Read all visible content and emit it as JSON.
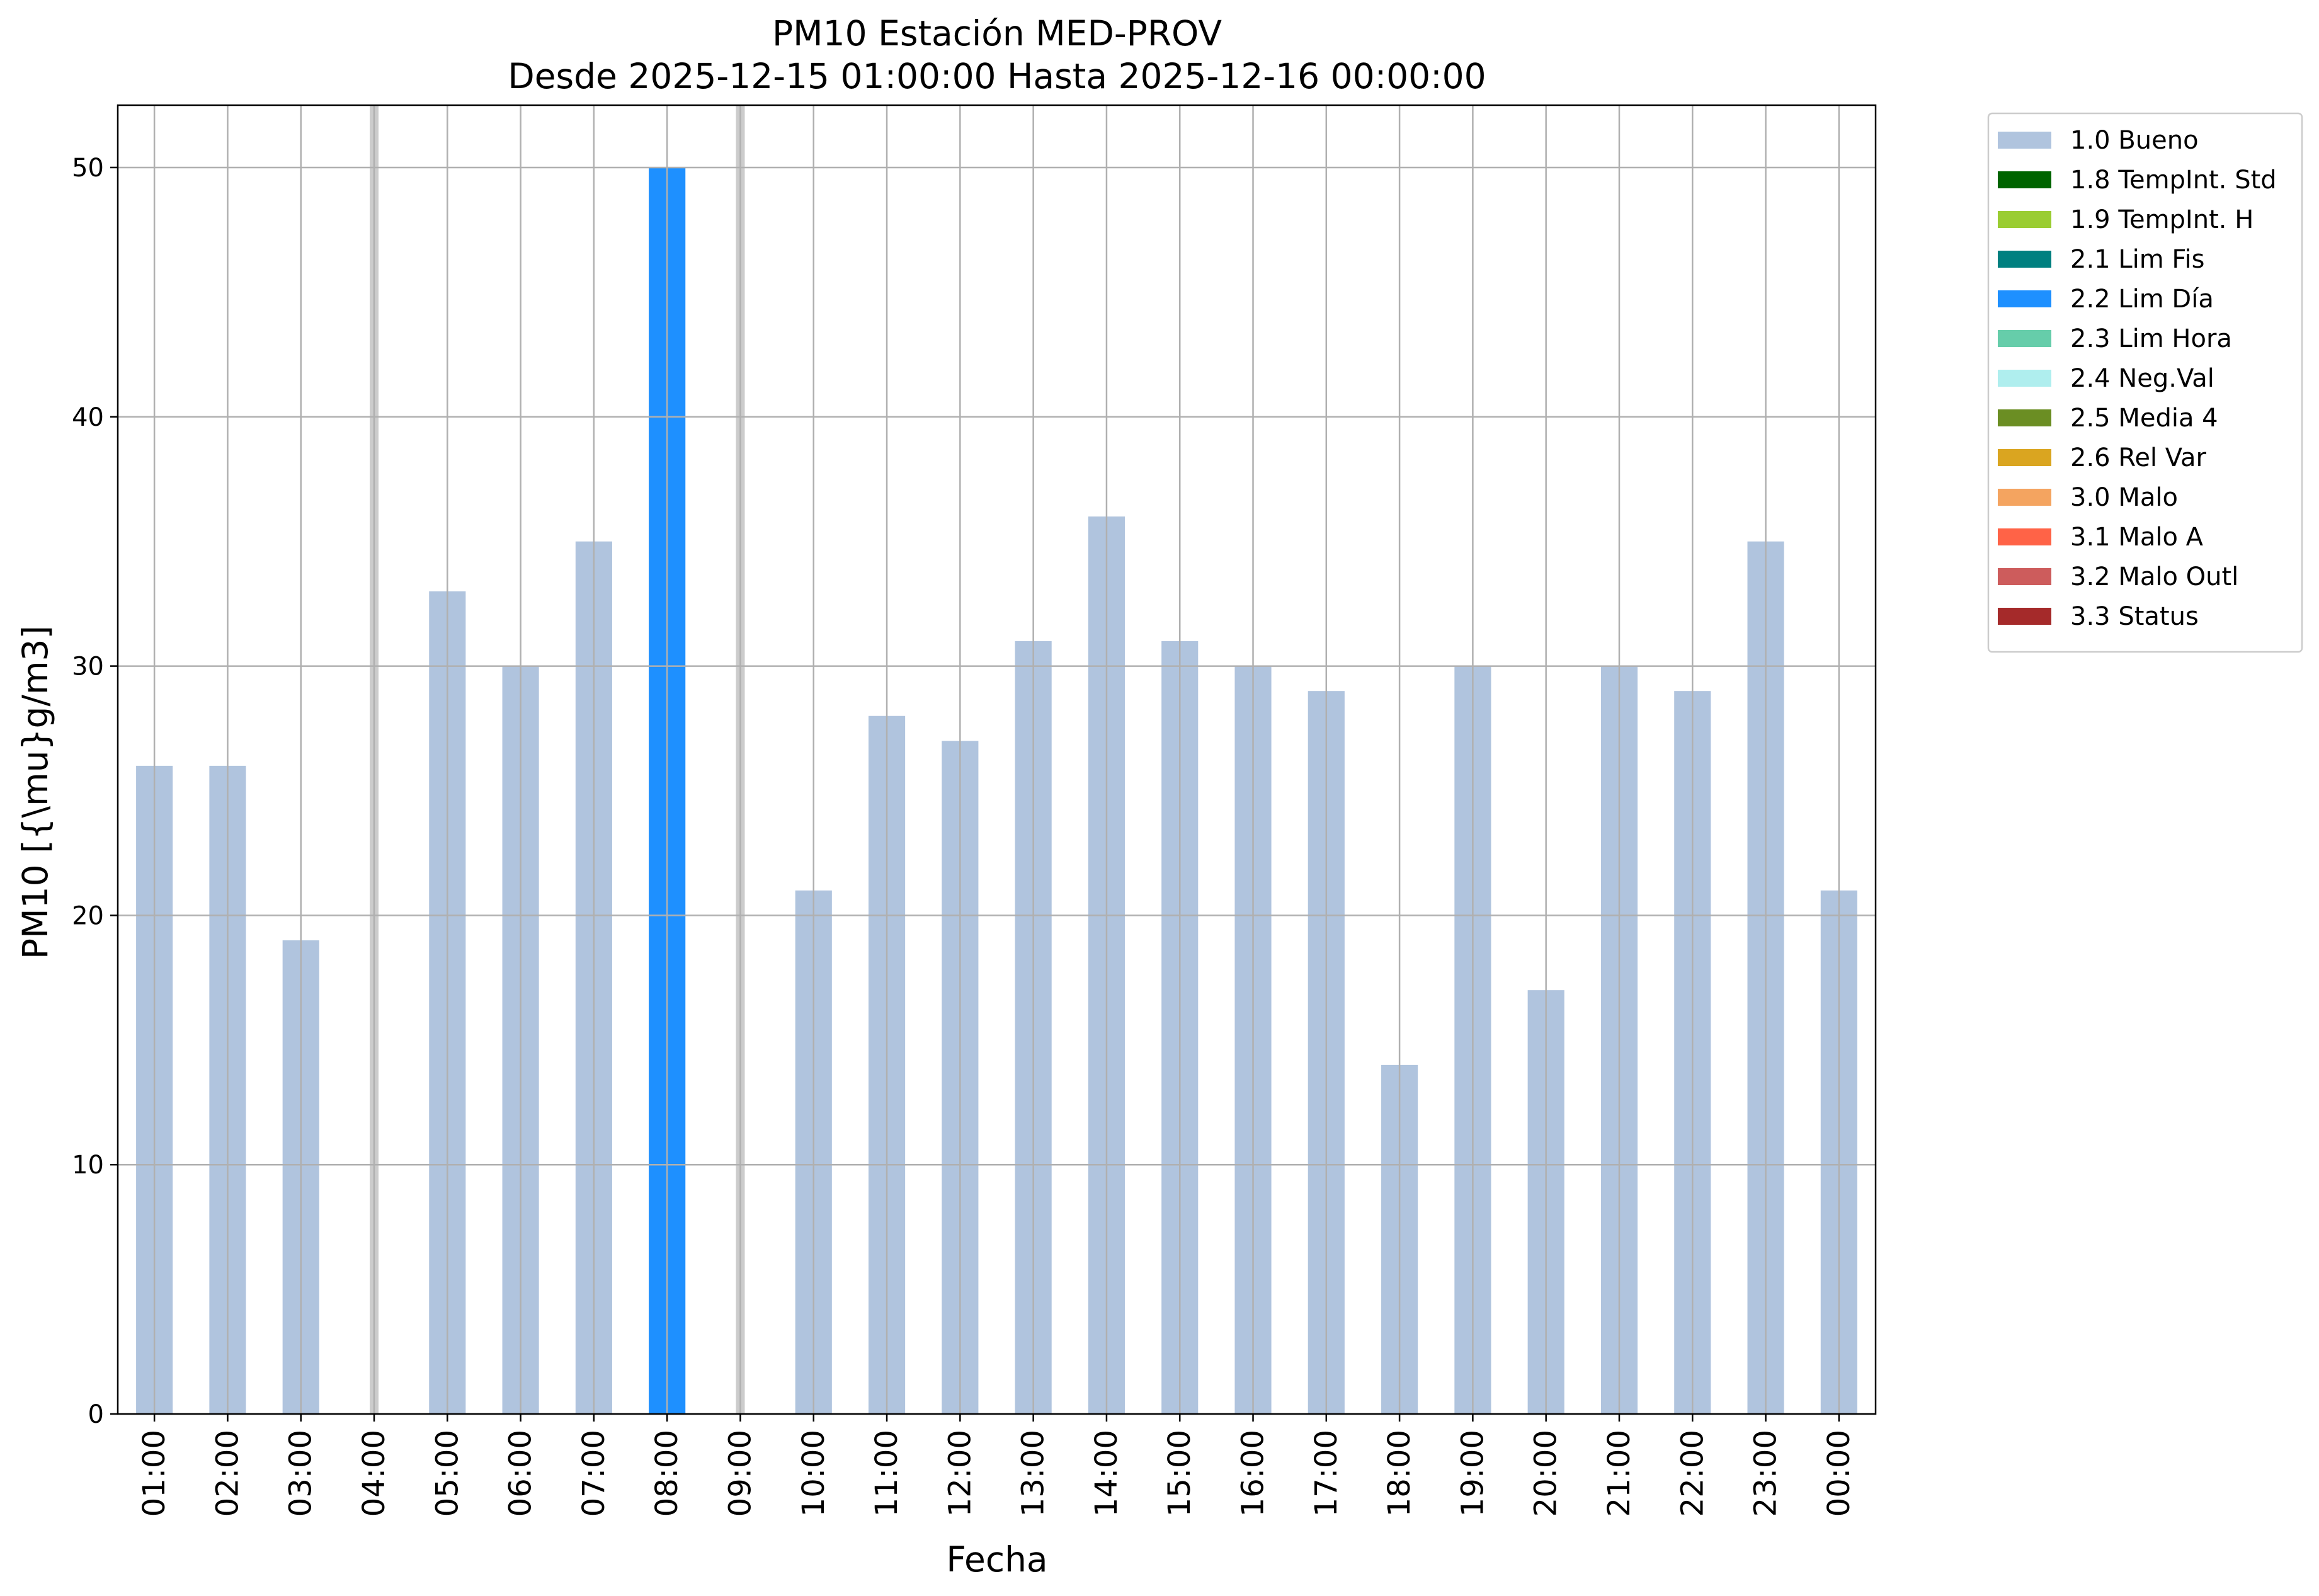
{
  "chart_data": {
    "type": "bar",
    "title": "PM10 Estación MED-PROV",
    "subtitle": "Desde 2025-12-15 01:00:00 Hasta 2025-12-16 00:00:00",
    "xlabel": "Fecha",
    "ylabel": "PM10 [{\\mu}g/m3]",
    "ylim": [
      0,
      52.5
    ],
    "yticks": [
      0,
      10,
      20,
      30,
      40,
      50
    ],
    "grid": true,
    "legend_position": "outside-top-right",
    "categories": [
      "01:00",
      "02:00",
      "03:00",
      "04:00",
      "05:00",
      "06:00",
      "07:00",
      "08:00",
      "09:00",
      "10:00",
      "11:00",
      "12:00",
      "13:00",
      "14:00",
      "15:00",
      "16:00",
      "17:00",
      "18:00",
      "19:00",
      "20:00",
      "21:00",
      "22:00",
      "23:00",
      "00:00"
    ],
    "values": [
      26,
      26,
      19,
      null,
      33,
      30,
      35,
      50,
      null,
      21,
      28,
      27,
      31,
      36,
      31,
      30,
      29,
      14,
      30,
      17,
      30,
      29,
      35,
      21
    ],
    "flags": [
      "1.0 Bueno",
      "1.0 Bueno",
      "1.0 Bueno",
      null,
      "1.0 Bueno",
      "1.0 Bueno",
      "1.0 Bueno",
      "2.2 Lim Día",
      null,
      "1.0 Bueno",
      "1.0 Bueno",
      "1.0 Bueno",
      "1.0 Bueno",
      "1.0 Bueno",
      "1.0 Bueno",
      "1.0 Bueno",
      "1.0 Bueno",
      "1.0 Bueno",
      "1.0 Bueno",
      "1.0 Bueno",
      "1.0 Bueno",
      "1.0 Bueno",
      "1.0 Bueno",
      "1.0 Bueno"
    ],
    "missing_marker_color": "#cccccc",
    "legend": [
      {
        "label": "1.0 Bueno",
        "color": "#b0c4de"
      },
      {
        "label": "1.8 TempInt. Std",
        "color": "#006400"
      },
      {
        "label": "1.9 TempInt. H",
        "color": "#9acd32"
      },
      {
        "label": "2.1 Lim Fis",
        "color": "#008080"
      },
      {
        "label": "2.2 Lim Día",
        "color": "#1e90ff"
      },
      {
        "label": "2.3 Lim Hora",
        "color": "#66cdaa"
      },
      {
        "label": "2.4 Neg.Val",
        "color": "#afeeee"
      },
      {
        "label": "2.5 Media 4",
        "color": "#6b8e23"
      },
      {
        "label": "2.6 Rel Var",
        "color": "#daa520"
      },
      {
        "label": "3.0 Malo",
        "color": "#f4a460"
      },
      {
        "label": "3.1 Malo A",
        "color": "#ff6347"
      },
      {
        "label": "3.2 Malo Outl",
        "color": "#cd5c5c"
      },
      {
        "label": "3.3 Status",
        "color": "#a52a2a"
      }
    ]
  }
}
